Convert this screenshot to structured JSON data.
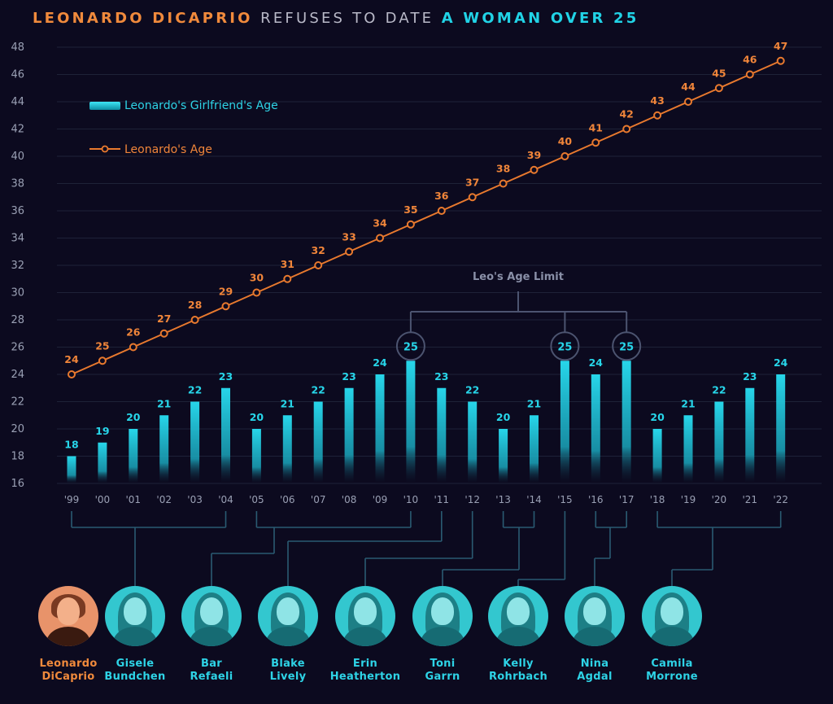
{
  "title": {
    "part1": "LEONARDO DICAPRIO",
    "part2": "REFUSES TO DATE",
    "part3": "A WOMAN OVER 25"
  },
  "colors": {
    "background": "#0c0a1f",
    "bar": "#1fc4d8",
    "line": "#e8792e",
    "grid": "#1e2238",
    "connector": "#2a5b72"
  },
  "legend": {
    "girlfriend": "Leonardo's Girlfriend's Age",
    "leo": "Leonardo's Age"
  },
  "annotation": {
    "age_limit": "Leo's Age Limit"
  },
  "chart_data": {
    "type": "bar",
    "title": "LEONARDO DICAPRIO REFUSES TO DATE A WOMAN OVER 25",
    "categories": [
      "'99",
      "'00",
      "'01",
      "'02",
      "'03",
      "'04",
      "'05",
      "'06",
      "'07",
      "'08",
      "'09",
      "'10",
      "'11",
      "'12",
      "'13",
      "'14",
      "'15",
      "'16",
      "'17",
      "'18",
      "'19",
      "'20",
      "'21",
      "'22"
    ],
    "series": [
      {
        "name": "Leonardo's Girlfriend's Age",
        "kind": "bar",
        "values": [
          18,
          19,
          20,
          21,
          22,
          23,
          20,
          21,
          22,
          23,
          24,
          25,
          23,
          22,
          20,
          21,
          25,
          24,
          25,
          20,
          21,
          22,
          23,
          24
        ]
      },
      {
        "name": "Leonardo's Age",
        "kind": "line",
        "values": [
          24,
          25,
          26,
          27,
          28,
          29,
          30,
          31,
          32,
          33,
          34,
          35,
          36,
          37,
          38,
          39,
          40,
          41,
          42,
          43,
          44,
          45,
          46,
          47
        ]
      }
    ],
    "ylim": [
      16,
      48
    ],
    "yticks": [
      16,
      18,
      20,
      22,
      24,
      26,
      28,
      30,
      32,
      34,
      36,
      38,
      40,
      42,
      44,
      46,
      48
    ],
    "grid": true,
    "legend_position": "top-left",
    "highlighted": [
      "'10",
      "'15",
      "'17"
    ]
  },
  "people": [
    {
      "first": "Leonardo",
      "last": "DiCaprio",
      "role": "leo"
    },
    {
      "first": "Gisele",
      "last": "Bundchen"
    },
    {
      "first": "Bar",
      "last": "Refaeli"
    },
    {
      "first": "Blake",
      "last": "Lively"
    },
    {
      "first": "Erin",
      "last": "Heatherton"
    },
    {
      "first": "Toni",
      "last": "Garrn"
    },
    {
      "first": "Kelly",
      "last": "Rohrbach"
    },
    {
      "first": "Nina",
      "last": "Agdal"
    },
    {
      "first": "Camila",
      "last": "Morrone"
    }
  ]
}
